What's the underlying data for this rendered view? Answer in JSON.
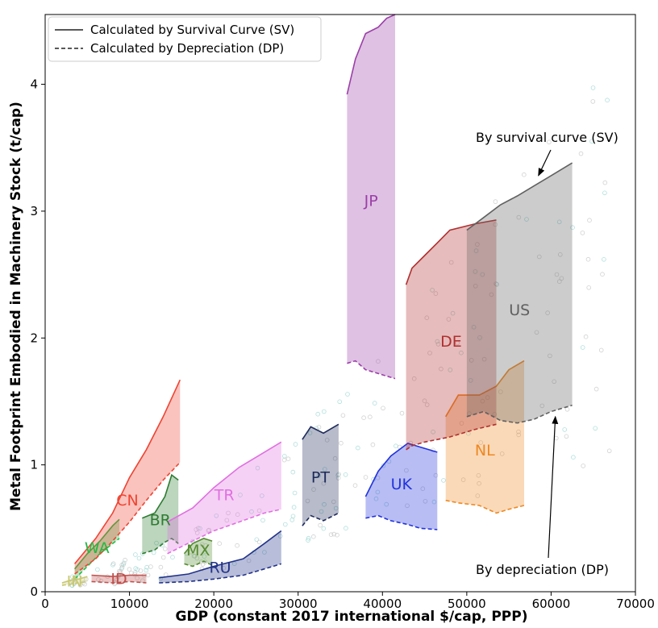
{
  "chart_data": {
    "type": "area",
    "xlabel": "GDP (constant 2017 international $/cap, PPP)",
    "ylabel": "Metal Footprint Embodied in Machinery Stock (t/cap)",
    "xlim": [
      0,
      70000
    ],
    "ylim": [
      0,
      4.55
    ],
    "x_ticks": [
      "0",
      "10000",
      "20000",
      "30000",
      "40000",
      "50000",
      "60000",
      "70000"
    ],
    "y_ticks": [
      "0",
      "1",
      "2",
      "3",
      "4"
    ],
    "grid": false,
    "legend": {
      "placement": "top-left",
      "entries": [
        {
          "label": "Calculated by Survival Curve (SV)",
          "style": "solid"
        },
        {
          "label": "Calculated by Depreciation (DP)",
          "style": "dashed"
        }
      ]
    },
    "annotations": [
      {
        "text": "By survival curve (SV)",
        "points_to": [
          58500,
          3.28
        ]
      },
      {
        "text": "By depreciation (DP)",
        "points_to": [
          60500,
          1.38
        ]
      }
    ],
    "series": [
      {
        "name": "IN",
        "color": "#c8c870",
        "sv": [
          [
            2000,
            0.07
          ],
          [
            3000,
            0.09
          ],
          [
            4000,
            0.1
          ],
          [
            5000,
            0.12
          ]
        ],
        "dp": [
          [
            2000,
            0.05
          ],
          [
            3000,
            0.06
          ],
          [
            4000,
            0.07
          ],
          [
            5000,
            0.08
          ]
        ]
      },
      {
        "name": "ID",
        "color": "#c0504d",
        "sv": [
          [
            5500,
            0.13
          ],
          [
            8000,
            0.12
          ],
          [
            10000,
            0.13
          ],
          [
            12000,
            0.13
          ]
        ],
        "dp": [
          [
            5500,
            0.08
          ],
          [
            8000,
            0.07
          ],
          [
            10000,
            0.08
          ],
          [
            12000,
            0.07
          ]
        ]
      },
      {
        "name": "WA",
        "color": "#22bb44",
        "sv": [
          [
            3500,
            0.18
          ],
          [
            5000,
            0.3
          ],
          [
            6500,
            0.4
          ],
          [
            8000,
            0.52
          ],
          [
            8800,
            0.57
          ]
        ],
        "dp": [
          [
            3500,
            0.1
          ],
          [
            5000,
            0.2
          ],
          [
            6500,
            0.3
          ],
          [
            8000,
            0.38
          ],
          [
            8800,
            0.42
          ]
        ]
      },
      {
        "name": "CN",
        "color": "#ee4433",
        "sv": [
          [
            3500,
            0.22
          ],
          [
            6000,
            0.42
          ],
          [
            8000,
            0.62
          ],
          [
            10000,
            0.9
          ],
          [
            12000,
            1.12
          ],
          [
            14000,
            1.38
          ],
          [
            16000,
            1.67
          ]
        ],
        "dp": [
          [
            3500,
            0.14
          ],
          [
            6000,
            0.26
          ],
          [
            8000,
            0.4
          ],
          [
            10000,
            0.55
          ],
          [
            12000,
            0.72
          ],
          [
            14000,
            0.88
          ],
          [
            16000,
            1.02
          ]
        ]
      },
      {
        "name": "BR",
        "color": "#2e7d32",
        "sv": [
          [
            11500,
            0.58
          ],
          [
            13000,
            0.62
          ],
          [
            14200,
            0.75
          ],
          [
            15000,
            0.92
          ],
          [
            15800,
            0.88
          ]
        ],
        "dp": [
          [
            11500,
            0.3
          ],
          [
            13000,
            0.33
          ],
          [
            14200,
            0.39
          ],
          [
            15000,
            0.42
          ],
          [
            15800,
            0.38
          ]
        ]
      },
      {
        "name": "MX",
        "color": "#558b2f",
        "sv": [
          [
            16500,
            0.3
          ],
          [
            17500,
            0.38
          ],
          [
            18800,
            0.42
          ],
          [
            19800,
            0.4
          ]
        ],
        "dp": [
          [
            16500,
            0.22
          ],
          [
            17500,
            0.2
          ],
          [
            18800,
            0.24
          ],
          [
            19800,
            0.21
          ]
        ]
      },
      {
        "name": "TR",
        "color": "#e070e0",
        "sv": [
          [
            14500,
            0.55
          ],
          [
            17500,
            0.66
          ],
          [
            20000,
            0.82
          ],
          [
            23000,
            0.98
          ],
          [
            26000,
            1.1
          ],
          [
            28000,
            1.18
          ]
        ],
        "dp": [
          [
            14500,
            0.3
          ],
          [
            17500,
            0.4
          ],
          [
            20000,
            0.48
          ],
          [
            23000,
            0.55
          ],
          [
            26000,
            0.62
          ],
          [
            28000,
            0.65
          ]
        ]
      },
      {
        "name": "RU",
        "color": "#223388",
        "sv": [
          [
            13500,
            0.11
          ],
          [
            17000,
            0.14
          ],
          [
            20000,
            0.2
          ],
          [
            23500,
            0.26
          ],
          [
            26000,
            0.38
          ],
          [
            28000,
            0.48
          ]
        ],
        "dp": [
          [
            13500,
            0.07
          ],
          [
            17000,
            0.08
          ],
          [
            20000,
            0.1
          ],
          [
            23500,
            0.13
          ],
          [
            26000,
            0.18
          ],
          [
            28000,
            0.22
          ]
        ]
      },
      {
        "name": "PT",
        "color": "#1e2a5a",
        "sv": [
          [
            30500,
            1.2
          ],
          [
            31500,
            1.3
          ],
          [
            33000,
            1.25
          ],
          [
            34800,
            1.32
          ]
        ],
        "dp": [
          [
            30500,
            0.52
          ],
          [
            31500,
            0.6
          ],
          [
            33000,
            0.56
          ],
          [
            34800,
            0.62
          ]
        ]
      },
      {
        "name": "UK",
        "color": "#2233dd",
        "sv": [
          [
            38000,
            0.75
          ],
          [
            39500,
            0.95
          ],
          [
            41000,
            1.07
          ],
          [
            43000,
            1.17
          ],
          [
            44500,
            1.14
          ],
          [
            46500,
            1.1
          ]
        ],
        "dp": [
          [
            38000,
            0.58
          ],
          [
            39500,
            0.6
          ],
          [
            41000,
            0.56
          ],
          [
            43000,
            0.53
          ],
          [
            44500,
            0.5
          ],
          [
            46500,
            0.49
          ]
        ]
      },
      {
        "name": "NL",
        "color": "#ee8822",
        "sv": [
          [
            47500,
            1.38
          ],
          [
            49000,
            1.55
          ],
          [
            51500,
            1.55
          ],
          [
            53500,
            1.62
          ],
          [
            55000,
            1.75
          ],
          [
            56800,
            1.82
          ]
        ],
        "dp": [
          [
            47500,
            0.72
          ],
          [
            49000,
            0.7
          ],
          [
            51500,
            0.68
          ],
          [
            53500,
            0.62
          ],
          [
            55000,
            0.65
          ],
          [
            56800,
            0.68
          ]
        ]
      },
      {
        "name": "JP",
        "color": "#9b3fa8",
        "sv": [
          [
            35800,
            3.92
          ],
          [
            36800,
            4.2
          ],
          [
            38000,
            4.4
          ],
          [
            39500,
            4.45
          ],
          [
            40500,
            4.52
          ],
          [
            41500,
            4.55
          ]
        ],
        "dp": [
          [
            35800,
            1.8
          ],
          [
            36800,
            1.82
          ],
          [
            38000,
            1.75
          ],
          [
            39500,
            1.72
          ],
          [
            40500,
            1.7
          ],
          [
            41500,
            1.68
          ]
        ]
      },
      {
        "name": "DE",
        "color": "#b03030",
        "sv": [
          [
            42800,
            2.42
          ],
          [
            43500,
            2.55
          ],
          [
            45000,
            2.65
          ],
          [
            46500,
            2.75
          ],
          [
            48000,
            2.85
          ],
          [
            51000,
            2.9
          ],
          [
            53500,
            2.93
          ]
        ],
        "dp": [
          [
            42800,
            1.12
          ],
          [
            43500,
            1.15
          ],
          [
            45000,
            1.18
          ],
          [
            46500,
            1.2
          ],
          [
            48000,
            1.22
          ],
          [
            51000,
            1.28
          ],
          [
            53500,
            1.32
          ]
        ]
      },
      {
        "name": "US",
        "color": "#606060",
        "sv": [
          [
            50000,
            2.85
          ],
          [
            52000,
            2.95
          ],
          [
            54000,
            3.05
          ],
          [
            56000,
            3.12
          ],
          [
            58000,
            3.2
          ],
          [
            60000,
            3.28
          ],
          [
            62500,
            3.38
          ]
        ],
        "dp": [
          [
            50000,
            1.38
          ],
          [
            52000,
            1.42
          ],
          [
            54000,
            1.35
          ],
          [
            56000,
            1.33
          ],
          [
            58000,
            1.36
          ],
          [
            60000,
            1.42
          ],
          [
            62500,
            1.47
          ]
        ]
      }
    ]
  }
}
